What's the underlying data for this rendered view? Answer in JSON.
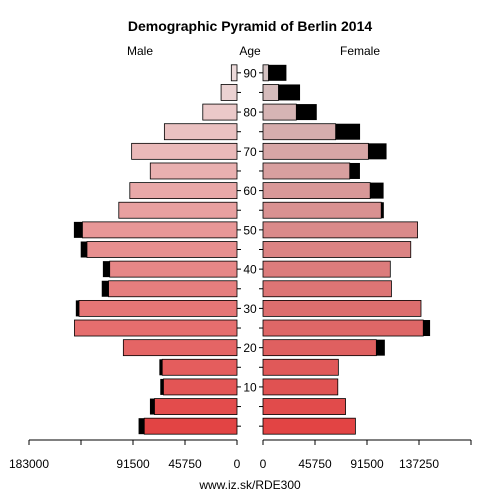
{
  "chart_data": {
    "type": "bar",
    "title": "Demographic Pyramid of Berlin 2014",
    "left_label": "Male",
    "center_label": "Age",
    "right_label": "Female",
    "source": "www.iz.sk/RDE300",
    "x_tick_labels_male": [
      "183000",
      "91500",
      "45750",
      "0"
    ],
    "x_tick_labels_female": [
      "0",
      "45750",
      "91500",
      "137250"
    ],
    "x_ticks_male_values": [
      183000,
      137250,
      91500,
      45750,
      0
    ],
    "x_ticks_female_values": [
      0,
      45750,
      91500,
      137250,
      183000
    ],
    "age_tick_labels": [
      "10",
      "20",
      "30",
      "40",
      "50",
      "60",
      "70",
      "80",
      "90"
    ],
    "age_tick_values": [
      10,
      20,
      30,
      40,
      50,
      60,
      70,
      80,
      90
    ],
    "x_max": 183000,
    "age_groups": [
      0,
      5,
      10,
      15,
      20,
      25,
      30,
      35,
      40,
      45,
      50,
      55,
      60,
      65,
      70,
      75,
      80,
      85,
      90
    ],
    "series": [
      {
        "name": "Male",
        "values": [
          81600,
          72600,
          64700,
          65800,
          100000,
          143000,
          139000,
          113000,
          112000,
          132000,
          136000,
          104000,
          94300,
          76300,
          92700,
          63900,
          30100,
          14000,
          5000
        ],
        "dark": [
          5000,
          4000,
          2800,
          2500,
          0,
          0,
          2800,
          6000,
          6000,
          5500,
          7500,
          0,
          0,
          0,
          0,
          0,
          0,
          0,
          0
        ]
      },
      {
        "name": "Female",
        "values": [
          81300,
          72600,
          65800,
          66300,
          99700,
          141000,
          139000,
          113000,
          112000,
          130000,
          136000,
          104000,
          94300,
          76300,
          92700,
          63900,
          29300,
          13600,
          4800
        ],
        "dark": [
          0,
          0,
          0,
          0,
          7500,
          6000,
          0,
          0,
          0,
          0,
          0,
          2300,
          11800,
          9000,
          16000,
          21500,
          18000,
          19000,
          15800
        ]
      }
    ],
    "colors": {
      "male_young": "#e24444",
      "male_old": "#ecdada",
      "female_young": "#e24444",
      "female_old": "#d4c2c2",
      "dark": "#000000"
    },
    "grid": false,
    "legend": "none"
  }
}
